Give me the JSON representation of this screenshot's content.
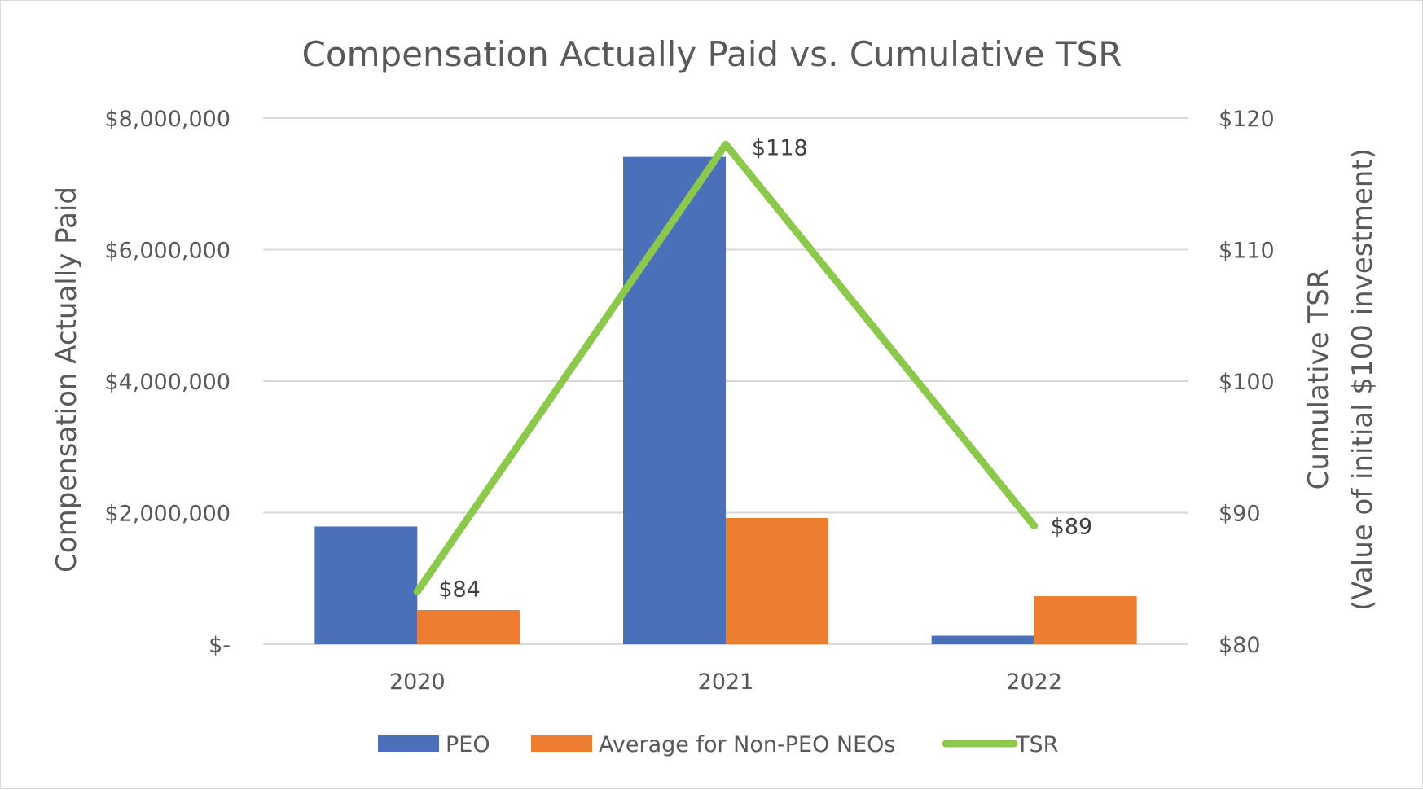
{
  "chart_data": {
    "type": "bar",
    "title": "Compensation Actually Paid vs. Cumulative TSR",
    "categories": [
      "2020",
      "2021",
      "2022"
    ],
    "y_left": {
      "label": "Compensation Actually Paid",
      "lim": [
        0,
        8000000
      ],
      "ticks": [
        0,
        2000000,
        4000000,
        6000000,
        8000000
      ],
      "tick_labels": [
        "$-",
        "$2,000,000",
        "$4,000,000",
        "$6,000,000",
        "$8,000,000"
      ]
    },
    "y_right": {
      "label_line1": "Cumulative TSR",
      "label_line2": "(Value of initial $100 investment)",
      "lim": [
        80,
        120
      ],
      "ticks": [
        80,
        90,
        100,
        110,
        120
      ],
      "tick_labels": [
        "$80",
        "$90",
        "$100",
        "$110",
        "$120"
      ]
    },
    "series": [
      {
        "name": "PEO",
        "kind": "bar",
        "axis": "left",
        "color": "#4a70b9",
        "values": [
          1790000,
          7410000,
          130000
        ]
      },
      {
        "name": "Average for Non-PEO NEOs",
        "kind": "bar",
        "axis": "left",
        "color": "#ed7d31",
        "values": [
          520000,
          1920000,
          730000
        ]
      },
      {
        "name": "TSR",
        "kind": "line",
        "axis": "right",
        "color": "#8cc84b",
        "values": [
          84,
          118,
          89
        ],
        "labels": [
          "$84",
          "$118",
          "$89"
        ]
      }
    ],
    "grid": true,
    "legend_position": "bottom"
  }
}
